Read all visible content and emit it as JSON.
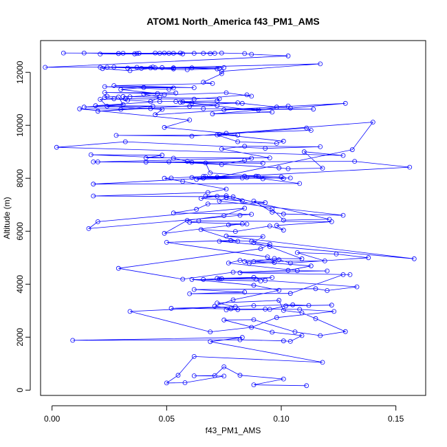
{
  "chart_data": {
    "type": "line",
    "title": "ATOM1 North_America f43_PM1_AMS",
    "xlabel": "f43_PM1_AMS",
    "ylabel": "Altitude (m)",
    "xlim": [
      -0.005,
      0.163
    ],
    "ylim": [
      -200,
      13200
    ],
    "xticks": [
      0.0,
      0.05,
      0.1,
      0.15
    ],
    "xtick_labels": [
      "0.00",
      "0.05",
      "0.10",
      "0.15"
    ],
    "yticks": [
      0,
      2000,
      4000,
      6000,
      8000,
      10000,
      12000
    ],
    "ytick_labels": [
      "0",
      "2000",
      "4000",
      "6000",
      "8000",
      "10000",
      "12000"
    ],
    "grid": false,
    "legend": "none",
    "series_color": "#0000ff",
    "marker": "open-circle",
    "series": [
      {
        "x": [
          0.111,
          0.088,
          0.101,
          0.082,
          0.075,
          0.071,
          0.062,
          0.075,
          0.058,
          0.05,
          0.055,
          0.062,
          0.118,
          0.069,
          0.083,
          0.009,
          0.082,
          0.101,
          0.104,
          0.109,
          0.096,
          0.075,
          0.088,
          0.106,
          0.117,
          0.128,
          0.115,
          0.109,
          0.101,
          0.099,
          0.072,
          0.08,
          0.052,
          0.078,
          0.093,
          0.108,
          0.123,
          0.098,
          0.087,
          0.069,
          0.034,
          0.088,
          0.105,
          0.112,
          0.122,
          0.102,
          0.095,
          0.076,
          0.081,
          0.071,
          0.079,
          0.099,
          0.088,
          0.061,
          0.091,
          0.066,
          0.074,
          0.089,
          0.096,
          0.073,
          0.072,
          0.088,
          0.093,
          0.133,
          0.12,
          0.115,
          0.062,
          0.084,
          0.06,
          0.104,
          0.127,
          0.13,
          0.082,
          0.12,
          0.107,
          0.077,
          0.082,
          0.099,
          0.104,
          0.138,
          0.124,
          0.107,
          0.119,
          0.084,
          0.086,
          0.097,
          0.094,
          0.05,
          0.078,
          0.087,
          0.095,
          0.091,
          0.029,
          0.057,
          0.079,
          0.103,
          0.113,
          0.088,
          0.097,
          0.109,
          0.095,
          0.088,
          0.092,
          0.076,
          0.158,
          0.073,
          0.081,
          0.065,
          0.08,
          0.095,
          0.101,
          0.098,
          0.122,
          0.064,
          0.06,
          0.085,
          0.077,
          0.083,
          0.049,
          0.059,
          0.075,
          0.084,
          0.02,
          0.016,
          0.082,
          0.087,
          0.053,
          0.063,
          0.068,
          0.093,
          0.088,
          0.096,
          0.101,
          0.127,
          0.073,
          0.076,
          0.096,
          0.101,
          0.121,
          0.076,
          0.067,
          0.072,
          0.065,
          0.083,
          0.079,
          0.018,
          0.068,
          0.076,
          0.057,
          0.049,
          0.052,
          0.067,
          0.084,
          0.101,
          0.1,
          0.089,
          0.061,
          0.104,
          0.066,
          0.063,
          0.083,
          0.085,
          0.092,
          0.108,
          0.018,
          0.156,
          0.132,
          0.041,
          0.051,
          0.074,
          0.084,
          0.087,
          0.02,
          0.092,
          0.018,
          0.061,
          0.099,
          0.103,
          0.118,
          0.11,
          0.127,
          0.002,
          0.032,
          0.093,
          0.117,
          0.084,
          0.074,
          0.095,
          0.041,
          0.048,
          0.017,
          0.053,
          0.059,
          0.067,
          0.069,
          0.09,
          0.066,
          0.072,
          0.131,
          0.14,
          0.061,
          0.028,
          0.081,
          0.073,
          0.101,
          0.098,
          0.081,
          0.072,
          0.111,
          0.113,
          0.076,
          0.049,
          0.06,
          0.012,
          0.043,
          0.066,
          0.114,
          0.075,
          0.128,
          0.104,
          0.098,
          0.083,
          0.057,
          0.061,
          0.096,
          0.07,
          0.09,
          0.103,
          0.045,
          0.048,
          0.024,
          0.021,
          0.032,
          0.062,
          0.085,
          0.087,
          0.076,
          0.049,
          0.034,
          0.031,
          0.073,
          0.072,
          0.054,
          0.047,
          0.019,
          0.06,
          0.072,
          0.056,
          0.081,
          0.02,
          0.03,
          0.044,
          0.014,
          0.031,
          0.029,
          0.024,
          0.023,
          0.027,
          0.033,
          0.043,
          0.047,
          0.04,
          0.054,
          0.023,
          0.046,
          0.03,
          0.04,
          0.053,
          0.051,
          0.023,
          0.062,
          0.027,
          0.07,
          0.066,
          0.074,
          0.074,
          0.117,
          0.045,
          0.034,
          0.022,
          0.024,
          0.059,
          0.073,
          0.043,
          0.033,
          0.053,
          0.053,
          0.075,
          0.048,
          0.039,
          0.061,
          0.072,
          0.053,
          0.021,
          0.044,
          0.037,
          0.027,
          -0.003,
          0.103,
          0.087,
          0.084,
          0.074,
          0.049,
          0.038,
          0.029,
          0.047,
          0.053,
          0.066,
          0.069,
          0.071,
          0.056,
          0.062,
          0.029,
          0.021,
          0.057,
          0.037,
          0.045,
          0.051,
          0.014,
          0.036,
          0.031,
          0.005
        ],
        "y": [
          170,
          200,
          420,
          560,
          880,
          550,
          540,
          530,
          280,
          270,
          560,
          1270,
          1050,
          1830,
          1990,
          1880,
          1900,
          1860,
          1840,
          2060,
          2190,
          2650,
          2660,
          2200,
          2060,
          2210,
          2700,
          2920,
          3010,
          3390,
          3290,
          3150,
          3090,
          3070,
          3060,
          3050,
          2970,
          2740,
          2370,
          2200,
          2970,
          3190,
          3220,
          3200,
          3210,
          3180,
          3050,
          3030,
          3040,
          3170,
          3410,
          3770,
          3960,
          4180,
          4120,
          4180,
          4210,
          4190,
          4250,
          4200,
          4220,
          4260,
          4140,
          3900,
          3760,
          3830,
          3800,
          3700,
          3640,
          3650,
          4360,
          4360,
          4430,
          4500,
          4510,
          4800,
          4900,
          4920,
          4800,
          5000,
          5140,
          5190,
          4880,
          4850,
          4780,
          4820,
          5030,
          5580,
          5650,
          5620,
          5510,
          5340,
          4600,
          4190,
          4450,
          4520,
          4690,
          4850,
          4970,
          4960,
          5420,
          5570,
          5800,
          5820,
          4960,
          5620,
          5620,
          6060,
          5990,
          6200,
          6040,
          6220,
          6360,
          6390,
          6340,
          6270,
          6240,
          6280,
          5920,
          6410,
          6590,
          6870,
          6360,
          6100,
          6600,
          6640,
          6690,
          6830,
          7030,
          7080,
          7140,
          6720,
          6650,
          6600,
          7140,
          7270,
          6840,
          6420,
          6450,
          7340,
          7330,
          7320,
          7240,
          7150,
          7300,
          7330,
          7460,
          7590,
          7880,
          8000,
          8010,
          8070,
          8080,
          7990,
          8050,
          8080,
          8030,
          8010,
          8000,
          7960,
          8010,
          8030,
          7980,
          7800,
          7780,
          8420,
          8640,
          8610,
          8620,
          8520,
          8680,
          8760,
          8620,
          8570,
          8620,
          8600,
          8390,
          8360,
          8380,
          9000,
          8860,
          9170,
          9380,
          9130,
          9190,
          9210,
          9110,
          8770,
          8770,
          8870,
          8890,
          8760,
          8640,
          8580,
          8200,
          8070,
          8070,
          8040,
          9080,
          10120,
          9590,
          9620,
          9630,
          9660,
          9400,
          9320,
          9380,
          9640,
          9900,
          9810,
          9700,
          9920,
          10200,
          10620,
          10630,
          10630,
          10610,
          10590,
          10830,
          10650,
          10690,
          10830,
          10880,
          10840,
          10500,
          10430,
          10580,
          10730,
          10400,
          10600,
          10720,
          10980,
          11000,
          10990,
          11150,
          11100,
          11230,
          11150,
          11080,
          11090,
          11000,
          10920,
          10900,
          10900,
          10740,
          10720,
          10740,
          10870,
          10850,
          10530,
          10600,
          10720,
          10690,
          10780,
          11070,
          11100,
          11050,
          11000,
          10950,
          10900,
          11060,
          11180,
          11220,
          11240,
          11200,
          11350,
          11430,
          11410,
          11360,
          11460,
          11420,
          11500,
          11580,
          11630,
          11950,
          12040,
          12320,
          12170,
          12060,
          12140,
          12190,
          12100,
          12140,
          12170,
          12160,
          12130,
          12170,
          12180,
          12180,
          12150,
          12170,
          12130,
          12170,
          12190,
          12200,
          12190,
          12200,
          12190,
          12620,
          12680,
          12710,
          12730,
          12730,
          12720,
          12710,
          12720,
          12720,
          12720,
          12710,
          12720,
          12730,
          12720,
          12710,
          12690,
          12700,
          12710,
          12730,
          12720,
          12730,
          12700,
          12720,
          12730
        ]
      }
    ]
  }
}
